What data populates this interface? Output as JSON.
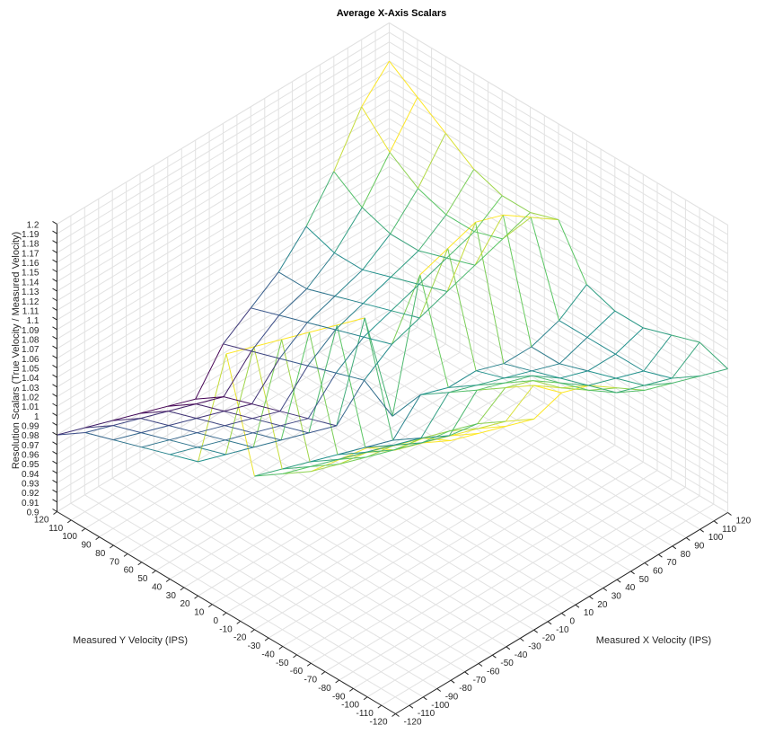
{
  "chart_data": {
    "type": "surface",
    "title": "Average X-Axis Scalars",
    "xlabel": "Measured X Velocity (IPS)",
    "ylabel": "Measured Y Velocity (IPS)",
    "zlabel": "Resolution Scalars (True Velocity / Measured Velocity)",
    "xlim": [
      -120,
      120
    ],
    "ylim": [
      -120,
      120
    ],
    "zlim": [
      0.9,
      1.2
    ],
    "x_ticks": [
      "-120",
      "-110",
      "-100",
      "-90",
      "-80",
      "-70",
      "-60",
      "-50",
      "-40",
      "-30",
      "-20",
      "-10",
      "0",
      "10",
      "20",
      "30",
      "40",
      "50",
      "60",
      "70",
      "80",
      "90",
      "100",
      "110",
      "120"
    ],
    "y_ticks": [
      "-120",
      "-110",
      "-100",
      "-90",
      "-80",
      "-70",
      "-60",
      "-50",
      "-40",
      "-30",
      "-20",
      "-10",
      "0",
      "10",
      "20",
      "30",
      "40",
      "50",
      "60",
      "70",
      "80",
      "90",
      "100",
      "110",
      "120"
    ],
    "z_ticks": [
      "0.9",
      "0.91",
      "0.92",
      "0.93",
      "0.94",
      "0.95",
      "0.96",
      "0.97",
      "0.98",
      "0.99",
      "1",
      "1.01",
      "1.02",
      "1.03",
      "1.04",
      "1.05",
      "1.06",
      "1.07",
      "1.08",
      "1.09",
      "1.1",
      "1.11",
      "1.12",
      "1.13",
      "1.14",
      "1.15",
      "1.16",
      "1.17",
      "1.18",
      "1.19",
      "1.2"
    ],
    "grid": true,
    "colormap": "viridis",
    "colormap_colors": [
      "#440154",
      "#3b528b",
      "#21918c",
      "#5ec962",
      "#fde725"
    ],
    "surface_grid_x": [
      -120,
      -100,
      -80,
      -60,
      -40,
      -20,
      0,
      20,
      40,
      60,
      80,
      100,
      120
    ],
    "surface_grid_y": [
      -120,
      -100,
      -80,
      -60,
      -40,
      -20,
      0,
      20,
      40,
      60,
      80,
      100,
      120
    ],
    "z_values": [
      [
        1.18,
        1.17,
        1.15,
        1.14,
        1.13,
        1.12,
        1.13,
        1.12,
        1.1,
        1.08,
        1.07,
        1.06,
        1.05
      ],
      [
        1.16,
        1.14,
        1.13,
        1.12,
        1.11,
        1.1,
        1.12,
        1.1,
        1.08,
        1.06,
        1.05,
        1.04,
        1.06
      ],
      [
        1.13,
        1.12,
        1.11,
        1.1,
        1.09,
        1.08,
        1.1,
        1.09,
        1.07,
        1.05,
        1.04,
        1.03,
        1.05
      ],
      [
        1.1,
        1.09,
        1.08,
        1.07,
        1.06,
        1.05,
        1.08,
        1.07,
        1.06,
        1.04,
        1.03,
        1.03,
        1.04
      ],
      [
        1.08,
        1.07,
        1.06,
        1.05,
        1.04,
        1.03,
        1.06,
        1.05,
        1.04,
        1.03,
        1.02,
        1.03,
        1.04
      ],
      [
        1.06,
        1.05,
        1.04,
        1.03,
        1.02,
        1.01,
        1.04,
        1.03,
        1.03,
        1.02,
        1.02,
        1.03,
        1.05
      ],
      [
        1.17,
        1.16,
        1.15,
        1.14,
        1.13,
        1.12,
        1.0,
        1.13,
        1.14,
        1.15,
        1.14,
        1.12,
        1.1
      ],
      [
        1.04,
        1.03,
        1.02,
        1.01,
        1.0,
        0.99,
        1.02,
        1.04,
        1.05,
        1.06,
        1.07,
        1.08,
        1.09
      ],
      [
        1.03,
        1.02,
        1.01,
        1.0,
        0.99,
        0.98,
        1.01,
        1.03,
        1.04,
        1.05,
        1.06,
        1.07,
        1.09
      ],
      [
        1.02,
        1.01,
        1.0,
        0.99,
        0.98,
        0.97,
        1.0,
        1.02,
        1.03,
        1.04,
        1.05,
        1.07,
        1.1
      ],
      [
        1.01,
        1.0,
        0.99,
        0.98,
        0.97,
        0.96,
        0.99,
        1.01,
        1.02,
        1.03,
        1.05,
        1.08,
        1.12
      ],
      [
        1.0,
        0.99,
        0.98,
        0.97,
        0.96,
        0.95,
        0.98,
        1.0,
        1.01,
        1.03,
        1.06,
        1.1,
        1.14
      ],
      [
        0.98,
        0.97,
        0.96,
        0.95,
        0.94,
        0.93,
        0.97,
        0.99,
        1.01,
        1.04,
        1.08,
        1.13,
        1.16
      ]
    ]
  }
}
